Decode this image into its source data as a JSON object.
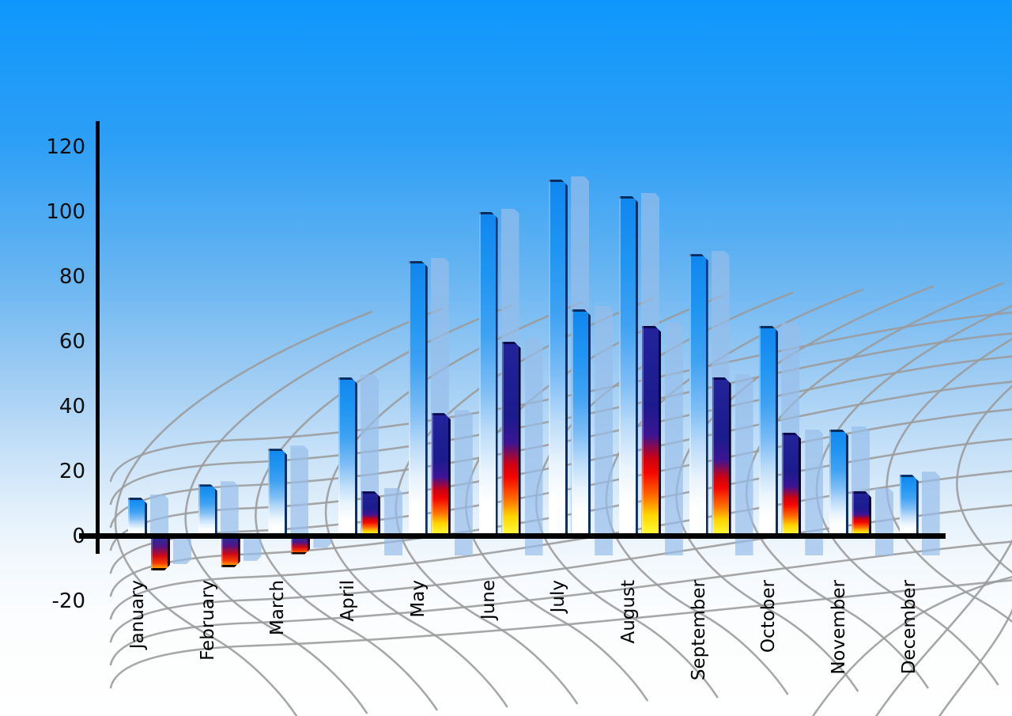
{
  "chart_data": {
    "type": "bar",
    "categories": [
      "January",
      "February",
      "March",
      "April",
      "May",
      "June",
      "July",
      "August",
      "September",
      "October",
      "November",
      "December"
    ],
    "series": [
      {
        "name": "primary-blue-bars",
        "values": [
          12,
          16,
          27,
          49,
          85,
          100,
          110,
          105,
          87,
          65,
          33,
          19
        ]
      },
      {
        "name": "secondary-accent-bars",
        "values": [
          -10,
          -9,
          -5,
          14,
          38,
          60,
          70,
          65,
          49,
          32,
          14,
          null
        ],
        "bar_styles": [
          "heat",
          "heat",
          "heat",
          "heat",
          "heat",
          "heat",
          "blue",
          "heat",
          "heat",
          "heat",
          "heat",
          "none"
        ]
      }
    ],
    "y_ticks": [
      120,
      100,
      80,
      60,
      40,
      20,
      0,
      -20
    ],
    "ylim": [
      -20,
      120
    ],
    "x_label_orientation": "rotated-90-ccw-reading-bottom-to-top",
    "legend": "none",
    "grid": "gray perspective floor grid of curved lines",
    "background": "blue sky gradient fading to white at bottom"
  },
  "colors": {
    "sky_top": "#0e97fc",
    "sky_bottom": "#ffffff",
    "bar_blue": "#1f95f2",
    "bar_edge_navy": "#0c3066",
    "bar_shadow_light_blue": "rgba(151,190,233,0.70)",
    "heat_navy": "#1b1b8e",
    "heat_red": "#f40600",
    "heat_yellow": "#ffff3d",
    "axis_black": "#000000",
    "grid_gray": "#9b9b9b",
    "label_text": "#000000"
  }
}
